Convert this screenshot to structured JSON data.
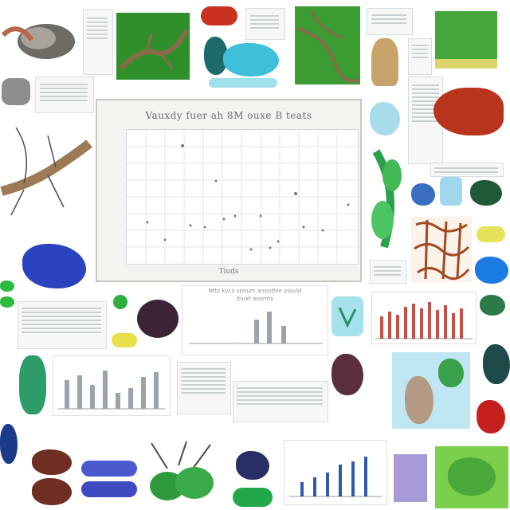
{
  "main_chart": {
    "title": "Vauxdy fuer ah 8M ouxe B teats",
    "xlabel": "Tiuds"
  },
  "bar_chart_middle": {
    "title": "Ntts kvcu sonum anouthie yssuld",
    "subtitle": "itiuxt anvmts"
  },
  "colors": {
    "leaf_green": "#2f8f2a",
    "bark_brown": "#8a6a4a",
    "coral_red": "#b8341c",
    "accent_blue": "#2447c8",
    "bar_red": "#c4504a",
    "bar_slate": "#9aa5ab"
  },
  "icons": [
    "shell-icon",
    "fern-leaf-icon",
    "branch-icon",
    "mushroom-icon",
    "crystal-icon"
  ]
}
